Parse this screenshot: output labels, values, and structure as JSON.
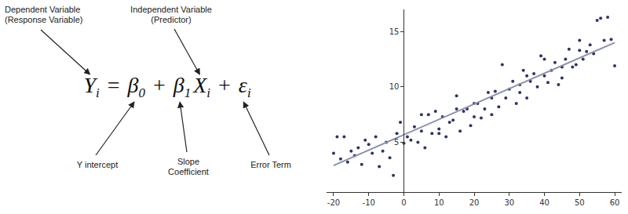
{
  "equation": {
    "tokens": [
      {
        "text": "Y",
        "sub": "i"
      },
      {
        "text": "="
      },
      {
        "text": "β",
        "sub": "0"
      },
      {
        "text": "+"
      },
      {
        "text": "β",
        "sub": "1"
      },
      {
        "text": "X",
        "sub": "i"
      },
      {
        "text": "+"
      },
      {
        "text": "ε",
        "sub": "i"
      }
    ]
  },
  "labels": [
    {
      "lines": [
        "Dependent Variable",
        "(Response Variable)"
      ],
      "target": 0
    },
    {
      "lines": [
        "Independent Variable",
        "(Predictor)"
      ],
      "target": 5
    },
    {
      "lines": [
        "Y intercept"
      ],
      "target": 2
    },
    {
      "lines": [
        "Slope",
        "Coefficient"
      ],
      "target": 4
    },
    {
      "lines": [
        "Error Term"
      ],
      "target": 7
    }
  ],
  "chart_data": {
    "type": "scatter",
    "xlim": [
      -22,
      62
    ],
    "ylim": [
      0.5,
      17
    ],
    "xticks": [
      -20,
      -10,
      0,
      10,
      20,
      30,
      40,
      50,
      60
    ],
    "yticks": [
      5,
      10,
      15
    ],
    "grid": false,
    "series": [
      {
        "type": "scatter",
        "color": "#2e3366",
        "marker": "circle",
        "x": [
          -20,
          -19,
          -18,
          -17,
          -16,
          -15,
          -14,
          -13,
          -12,
          -11,
          -10,
          -9,
          -8,
          -7,
          -6,
          -5,
          -4,
          -3,
          -2,
          -1,
          0,
          1,
          2,
          3,
          4,
          5,
          6,
          7,
          8,
          9,
          10,
          11,
          12,
          13,
          14,
          15,
          16,
          17,
          18,
          19,
          20,
          21,
          22,
          23,
          24,
          25,
          26,
          27,
          28,
          29,
          30,
          31,
          32,
          33,
          34,
          35,
          36,
          37,
          38,
          39,
          40,
          41,
          42,
          43,
          44,
          45,
          46,
          47,
          48,
          49,
          50,
          51,
          52,
          53,
          54,
          55,
          56,
          57,
          58,
          59,
          60,
          5,
          10,
          20,
          25,
          33,
          40,
          45,
          50,
          35,
          15
        ],
        "values": [
          4.0,
          5.5,
          3.5,
          5.5,
          3.2,
          4.2,
          3.8,
          4.5,
          3.0,
          5.2,
          4.8,
          4.0,
          5.5,
          2.8,
          4.2,
          5.0,
          3.6,
          2.0,
          5.8,
          6.8,
          4.9,
          5.5,
          5.2,
          6.4,
          5.0,
          6.0,
          4.5,
          7.5,
          5.8,
          7.8,
          6.2,
          7.3,
          5.5,
          6.8,
          7.0,
          9.2,
          6.0,
          7.8,
          8.0,
          6.5,
          8.5,
          8.5,
          7.2,
          8.0,
          9.5,
          7.5,
          9.6,
          8.2,
          12.0,
          9.0,
          9.8,
          10.5,
          8.5,
          10.2,
          11.5,
          9.0,
          10.5,
          11.2,
          10.0,
          12.8,
          11.0,
          10.4,
          11.5,
          12.2,
          10.2,
          11.8,
          12.5,
          13.4,
          11.8,
          12.0,
          14.2,
          12.5,
          13.2,
          13.8,
          13.0,
          16.0,
          16.2,
          14.2,
          16.3,
          14.3,
          11.9,
          7.5,
          5.8,
          7.3,
          9.0,
          9.5,
          12.5,
          10.8,
          13.3,
          11.0,
          8.0
        ]
      },
      {
        "type": "line",
        "color": "#8c91ad",
        "line_style": "solid",
        "x": [
          -20,
          60
        ],
        "values": [
          2.9,
          14.0
        ]
      }
    ]
  }
}
